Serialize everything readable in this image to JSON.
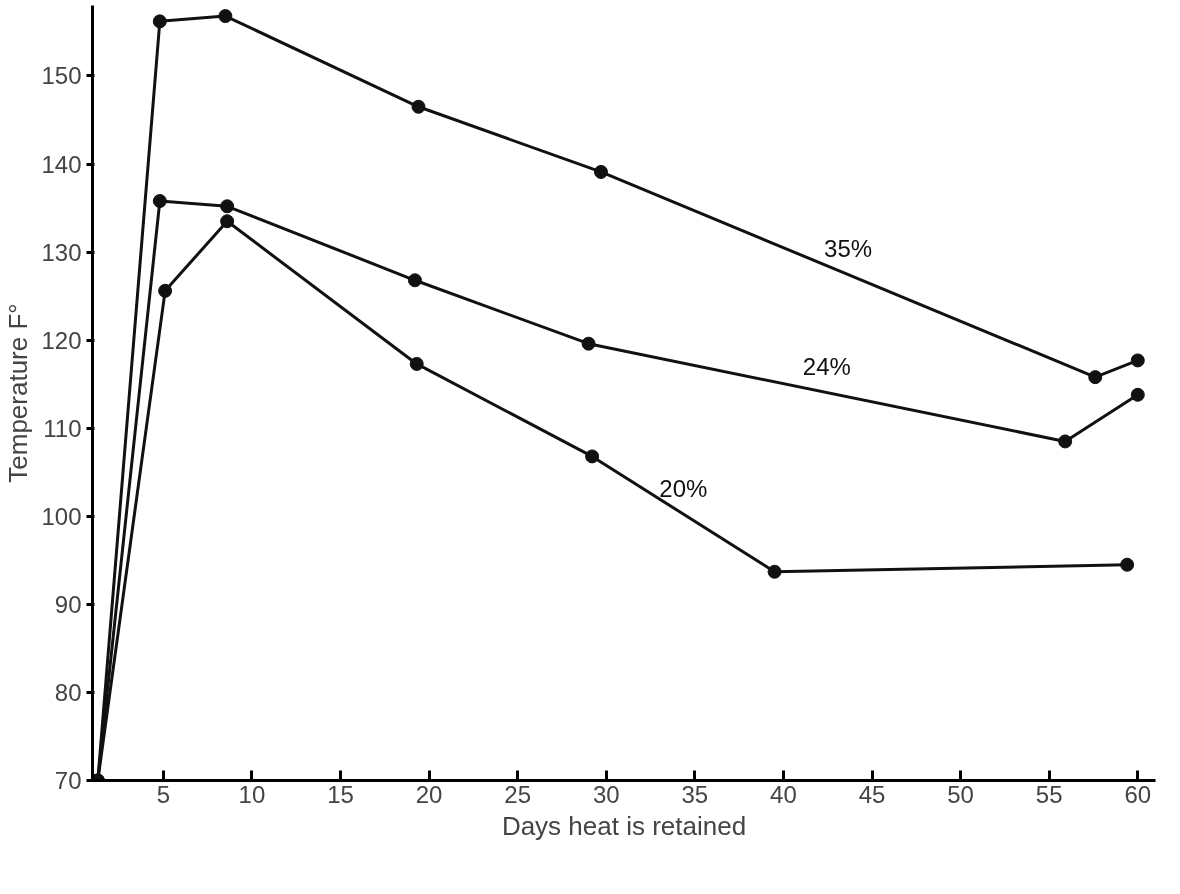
{
  "chart_data": {
    "type": "line",
    "xlabel": "Days heat is retained",
    "ylabel": "Temperature F°",
    "xlim": [
      1,
      61
    ],
    "ylim": [
      70,
      158
    ],
    "xticks": [
      5,
      10,
      15,
      20,
      25,
      30,
      35,
      40,
      45,
      50,
      55,
      60
    ],
    "yticks": [
      70,
      80,
      90,
      100,
      110,
      120,
      130,
      140,
      150
    ],
    "grid": false,
    "legend": false,
    "marker": "circle",
    "line_style": "solid",
    "series": [
      {
        "name": "35%",
        "color": "#111111",
        "x": [
          1.3,
          4.8,
          8.5,
          19.4,
          29.7,
          57.6,
          60
        ],
        "values": [
          70,
          156.2,
          156.8,
          146.5,
          139.1,
          115.8,
          117.7
        ]
      },
      {
        "name": "24%",
        "color": "#111111",
        "x": [
          1.3,
          4.8,
          8.6,
          19.2,
          29,
          55.9,
          60
        ],
        "values": [
          70,
          135.8,
          135.2,
          126.8,
          119.6,
          108.5,
          113.8
        ]
      },
      {
        "name": "20%",
        "color": "#111111",
        "x": [
          1.3,
          5.1,
          8.6,
          19.3,
          29.2,
          39.5,
          59.4
        ],
        "values": [
          70,
          125.6,
          133.5,
          117.3,
          106.8,
          93.7,
          94.5
        ]
      }
    ]
  }
}
